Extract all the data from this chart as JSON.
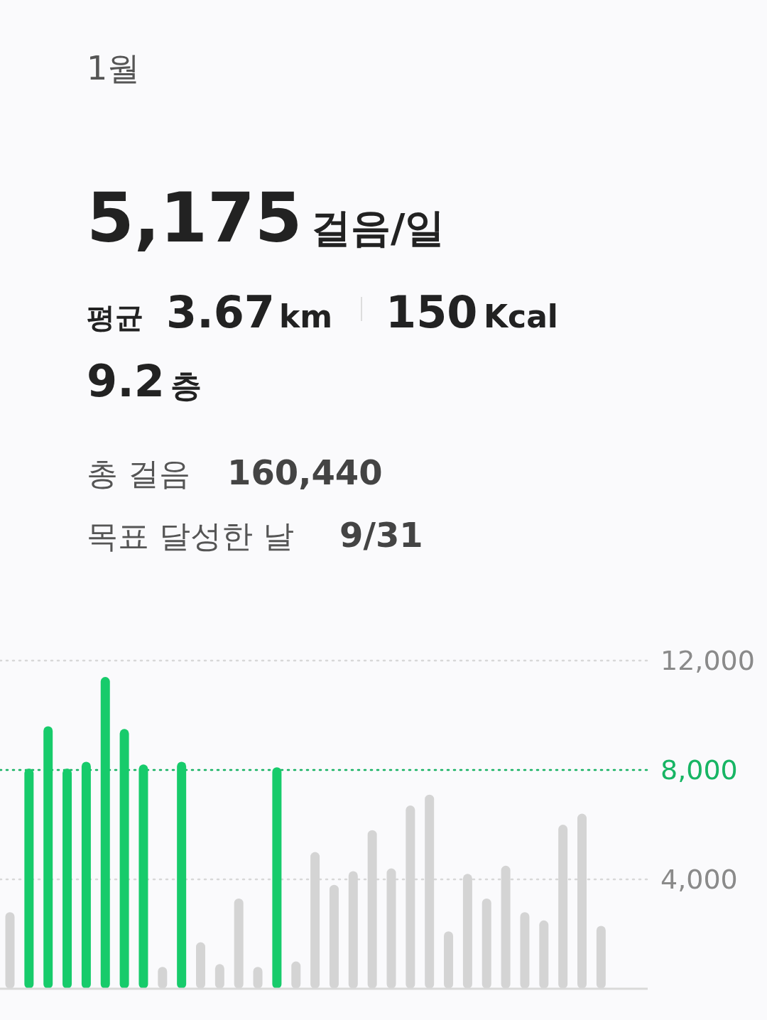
{
  "chart_data": {
    "type": "bar",
    "title": "1월",
    "annotations": [
      "5,175",
      "걸음/일",
      "평균",
      "3.67",
      "km",
      "150",
      "Kcal",
      "9.2",
      "층",
      "총 걸음",
      "160,440",
      "목표 달성한 날",
      "9/31"
    ],
    "categories": [
      null,
      null,
      null,
      null,
      null,
      null,
      null,
      null,
      null,
      null,
      null,
      null,
      null,
      null,
      null,
      null,
      null,
      null,
      null,
      null,
      null,
      null,
      null,
      null,
      null,
      null,
      null,
      null,
      null,
      null,
      null,
      null
    ],
    "values": [
      2800,
      8050,
      9600,
      8050,
      8300,
      11400,
      9500,
      8200,
      800,
      8300,
      1700,
      900,
      3300,
      800,
      8100,
      1000,
      5000,
      3800,
      4300,
      5800,
      4400,
      6700,
      7100,
      2100,
      4200,
      3300,
      4500,
      2800,
      2500,
      6000,
      6400,
      2300
    ],
    "colors": [
      "#d4d4d4",
      "#17cb6b",
      "#17cb6b",
      "#17cb6b",
      "#17cb6b",
      "#17cb6b",
      "#17cb6b",
      "#17cb6b",
      "#d4d4d4",
      "#17cb6b",
      "#d4d4d4",
      "#d4d4d4",
      "#d4d4d4",
      "#d4d4d4",
      "#17cb6b",
      "#d4d4d4",
      "#d4d4d4",
      "#d4d4d4",
      "#d4d4d4",
      "#d4d4d4",
      "#d4d4d4",
      "#d4d4d4",
      "#d4d4d4",
      "#d4d4d4",
      "#d4d4d4",
      "#d4d4d4",
      "#d4d4d4",
      "#d4d4d4",
      "#d4d4d4",
      "#d4d4d4",
      "#d4d4d4",
      "#d4d4d4"
    ],
    "ylim": [
      0,
      12000
    ],
    "yticks": [
      {
        "value": 4000,
        "label": "4,000"
      },
      {
        "value": 8000,
        "label": "8,000"
      },
      {
        "value": 12000,
        "label": "12,000"
      }
    ],
    "grid": "y",
    "ref_lines": [
      {
        "axis": "y",
        "value": 8000,
        "color": "#17b564",
        "line_style": "dotted"
      }
    ]
  }
}
